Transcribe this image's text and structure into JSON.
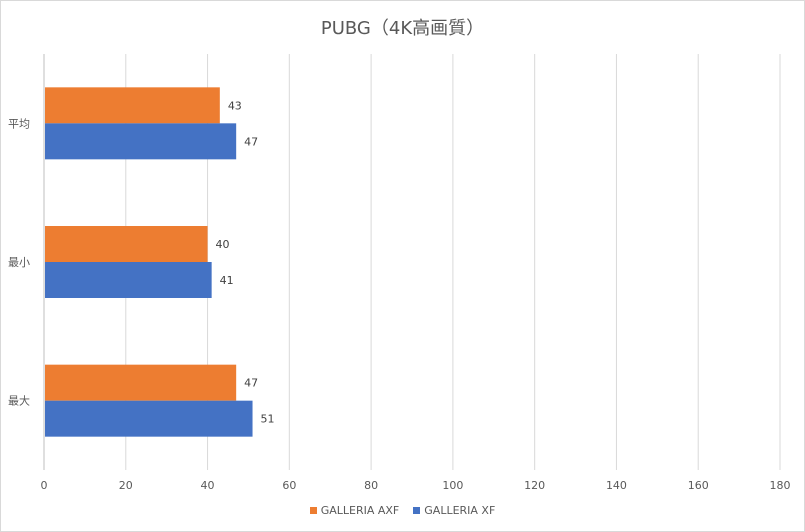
{
  "chart_data": {
    "type": "bar",
    "orientation": "horizontal",
    "title": "PUBG（4K高画質）",
    "categories": [
      "平均",
      "最小",
      "最大"
    ],
    "series": [
      {
        "name": "GALLERIA AXF",
        "color": "#ED7D31",
        "values": [
          43,
          40,
          47
        ]
      },
      {
        "name": "GALLERIA XF",
        "color": "#4472C4",
        "values": [
          47,
          41,
          51
        ]
      }
    ],
    "xlim": [
      0,
      180
    ],
    "xticks": [
      "0",
      "20",
      "40",
      "60",
      "80",
      "100",
      "120",
      "140",
      "160",
      "180"
    ],
    "grid": "vertical",
    "legend": "bottom",
    "xlabel": "",
    "ylabel": ""
  }
}
